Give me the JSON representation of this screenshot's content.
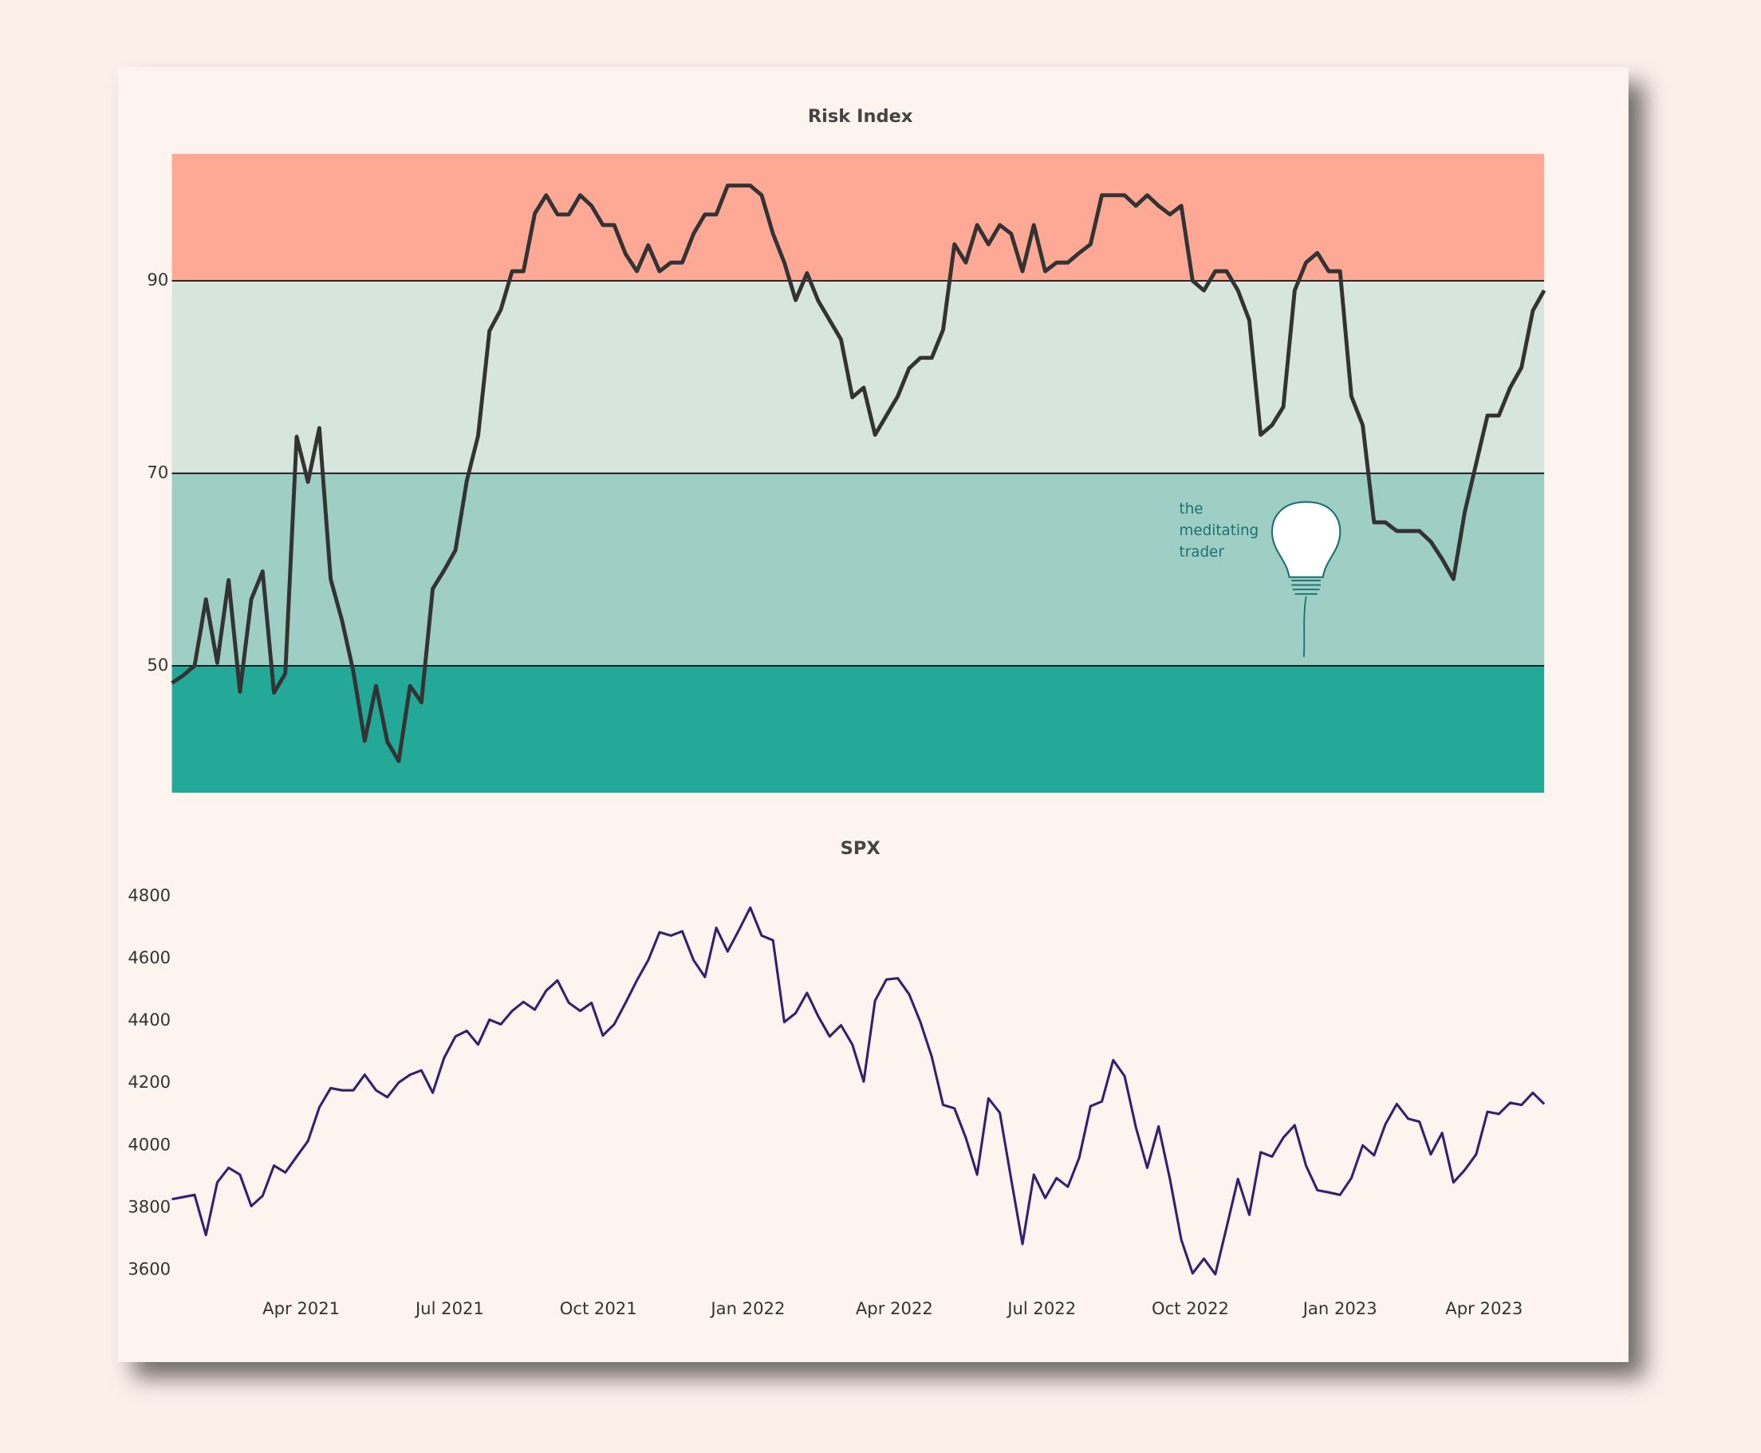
{
  "chart_data": [
    {
      "type": "line",
      "title": "Risk Index",
      "color": "#333333",
      "values": [
        48.2,
        49,
        50,
        56.9,
        50.3,
        58.9,
        47.3,
        56.9,
        59.8,
        47.2,
        49.2,
        73.8,
        69.1,
        74.7,
        59,
        54.7,
        49.4,
        42.2,
        47.9,
        42.1,
        40.1,
        47.9,
        46.2,
        58,
        59.9,
        62,
        69.2,
        73.9,
        84.8,
        87,
        91,
        91,
        97,
        98.9,
        96.9,
        96.9,
        98.9,
        97.8,
        95.8,
        95.8,
        92.8,
        91,
        93.7,
        91,
        91.9,
        91.9,
        94.9,
        96.9,
        96.9,
        99.9,
        99.9,
        99.9,
        98.9,
        94.9,
        91.9,
        88,
        90.8,
        87.9,
        85.9,
        83.9,
        77.9,
        78.9,
        74,
        76,
        78,
        80.9,
        82,
        82,
        84.9,
        93.8,
        91.9,
        95.8,
        93.8,
        95.8,
        94.9,
        91,
        95.8,
        91,
        91.9,
        91.9,
        92.9,
        93.8,
        98.9,
        98.9,
        98.9,
        97.8,
        98.9,
        97.8,
        96.9,
        97.8,
        90,
        89,
        91,
        91,
        89,
        85.9,
        74,
        75,
        76.9,
        89,
        91.9,
        92.9,
        91,
        91,
        78,
        75,
        64.9,
        64.9,
        64,
        64,
        64,
        62.9,
        61.1,
        59,
        66,
        71,
        76,
        76,
        78.9,
        81,
        86.9,
        89
      ],
      "xlim": [
        0,
        121
      ],
      "ylim": [
        36.8,
        103.2
      ],
      "yticks": [
        50,
        70,
        90
      ],
      "grid": true,
      "grid_color": "#000000",
      "band_colors": [
        "#24a898",
        "#9fcfc4",
        "#d6e6df",
        "#fda995"
      ],
      "annotation": [
        "the",
        "meditating",
        "trader"
      ]
    },
    {
      "type": "line",
      "title": "SPX",
      "color": "#35206e",
      "values": [
        3827,
        3834,
        3841,
        3712,
        3881,
        3928,
        3906,
        3805,
        3838,
        3935,
        3913,
        3964,
        4014,
        4122,
        4184,
        4177,
        4177,
        4227,
        4177,
        4155,
        4202,
        4227,
        4241,
        4169,
        4281,
        4350,
        4368,
        4324,
        4404,
        4389,
        4432,
        4461,
        4436,
        4497,
        4530,
        4458,
        4432,
        4458,
        4353,
        4389,
        4458,
        4530,
        4595,
        4685,
        4674,
        4688,
        4595,
        4541,
        4699,
        4623,
        4692,
        4764,
        4674,
        4659,
        4396,
        4425,
        4490,
        4414,
        4350,
        4386,
        4324,
        4205,
        4465,
        4533,
        4537,
        4486,
        4396,
        4285,
        4130,
        4119,
        4025,
        3906,
        4151,
        4105,
        3892,
        3683,
        3906,
        3831,
        3895,
        3867,
        3960,
        4126,
        4141,
        4274,
        4223,
        4058,
        3928,
        4061,
        3892,
        3697,
        3589,
        3636,
        3586,
        3737,
        3892,
        3777,
        3978,
        3964,
        4025,
        4065,
        3935,
        3856,
        3849,
        3841,
        3895,
        4000,
        3968,
        4068,
        4133,
        4086,
        4076,
        3971,
        4040,
        3881,
        3921,
        3971,
        4108,
        4101,
        4137,
        4130,
        4169,
        4133
      ],
      "xlim": [
        0,
        121
      ],
      "ylim": [
        3560,
        4830
      ],
      "yticks": [
        3600,
        3800,
        4000,
        4200,
        4400,
        4600,
        4800
      ],
      "grid": false,
      "xticks": [
        {
          "value": 11.4,
          "label": "Apr 2021"
        },
        {
          "value": 24.5,
          "label": "Jul 2021"
        },
        {
          "value": 37.6,
          "label": "Oct 2021"
        },
        {
          "value": 50.8,
          "label": "Jan 2022"
        },
        {
          "value": 63.7,
          "label": "Apr 2022"
        },
        {
          "value": 76.7,
          "label": "Jul 2022"
        },
        {
          "value": 89.8,
          "label": "Oct 2022"
        },
        {
          "value": 103.0,
          "label": "Jan 2023"
        },
        {
          "value": 115.7,
          "label": "Apr 2023"
        }
      ]
    }
  ]
}
